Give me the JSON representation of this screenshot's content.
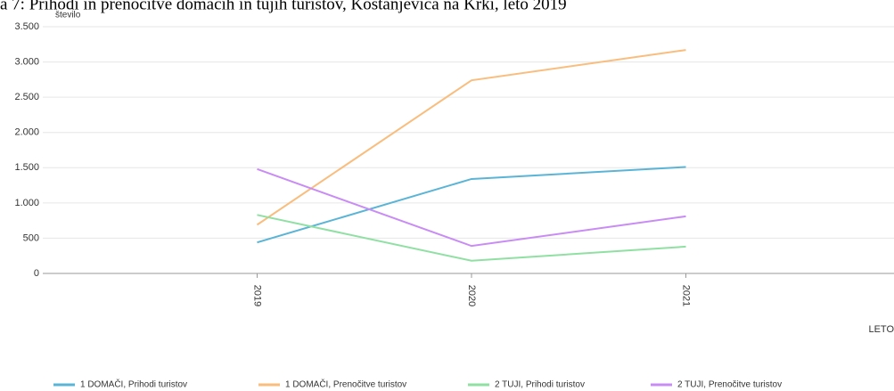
{
  "chart_data": {
    "type": "line",
    "title": "a 7: Prihodi in prenočitve domačih in tujih turistov, Kostanjevica na Krki, leto 2019",
    "y_label": "število",
    "x_label": "LETO",
    "categories": [
      "2019",
      "2020",
      "2021"
    ],
    "series": [
      {
        "name": "1 DOMAČI, Prihodi turistov",
        "color": "#5ab4d6",
        "values": [
          440,
          1340,
          1510
        ]
      },
      {
        "name": "1 DOMAČI, Prenočitve turistov",
        "color": "#f9bd7e",
        "values": [
          690,
          2740,
          3170
        ]
      },
      {
        "name": "2 TUJI, Prihodi turistov",
        "color": "#8fe0a2",
        "values": [
          830,
          180,
          380
        ]
      },
      {
        "name": "2 TUJI, Prenočitve turistov",
        "color": "#c98cf5",
        "values": [
          1480,
          390,
          810
        ]
      }
    ],
    "ylim": [
      0,
      3500
    ],
    "yticks": [
      0,
      {
        "value": 500,
        "label": "500"
      },
      {
        "value": 1000,
        "label": "1.000"
      },
      {
        "value": 1500,
        "label": "1.500"
      },
      {
        "value": 2000,
        "label": "2.000"
      },
      {
        "value": 2500,
        "label": "2.500"
      },
      {
        "value": 3000,
        "label": "3.000"
      },
      {
        "value": 3500,
        "label": "3.500"
      }
    ],
    "grid": true,
    "legend": "bottom"
  }
}
